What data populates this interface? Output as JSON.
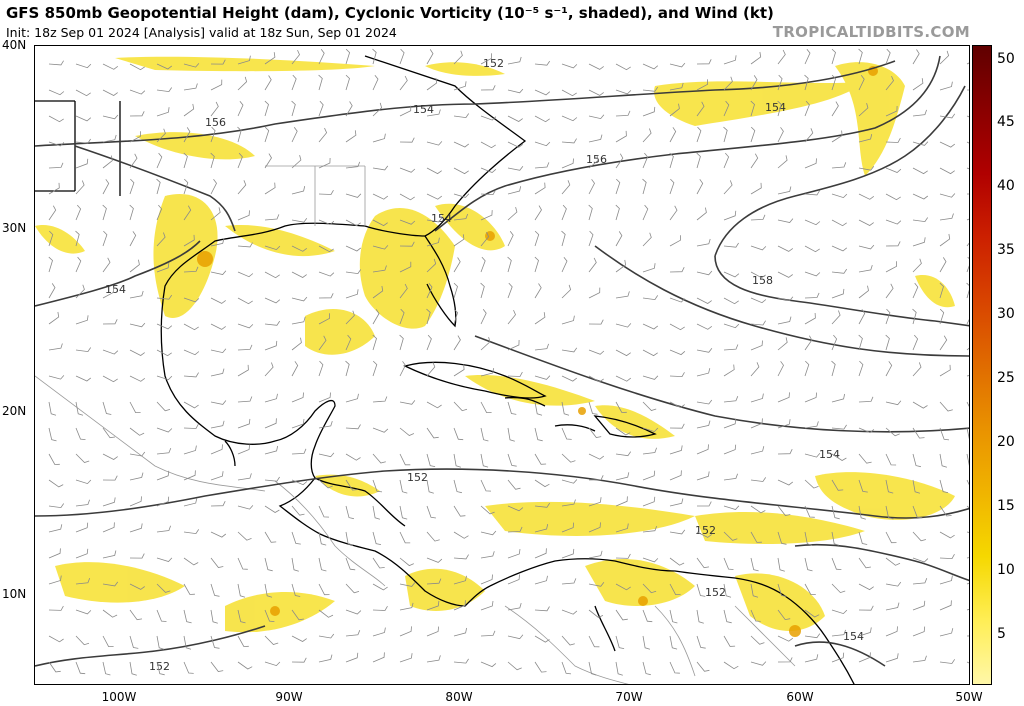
{
  "header": {
    "title": "GFS 850mb Geopotential Height (dam), Cyclonic Vorticity (10⁻⁵ s⁻¹, shaded), and Wind (kt)",
    "init": "Init: 18z Sep 01 2024   [Analysis]   valid at 18z Sun, Sep 01 2024",
    "brand": "TROPICALTIDBITS.COM"
  },
  "axes": {
    "lat_labels": [
      "40N",
      "30N",
      "20N",
      "10N"
    ],
    "lon_labels": [
      "100W",
      "90W",
      "80W",
      "70W",
      "60W",
      "50W"
    ]
  },
  "colorbar": {
    "labels": [
      "50",
      "45",
      "40",
      "35",
      "30",
      "25",
      "20",
      "15",
      "10",
      "5"
    ],
    "colors": [
      "#fff7a8",
      "#ffee55",
      "#f5d800",
      "#f0b400",
      "#e99200",
      "#e06b00",
      "#d84400",
      "#cc2000",
      "#b00000",
      "#8a0000",
      "#600000"
    ]
  },
  "contours": {
    "labels": [
      "152",
      "154",
      "156",
      "154",
      "154",
      "156",
      "154",
      "158",
      "152",
      "152",
      "152",
      "154",
      "154",
      "152"
    ]
  },
  "icons": {
    "map": "weather-map",
    "wind": "wind-barb-icon"
  }
}
